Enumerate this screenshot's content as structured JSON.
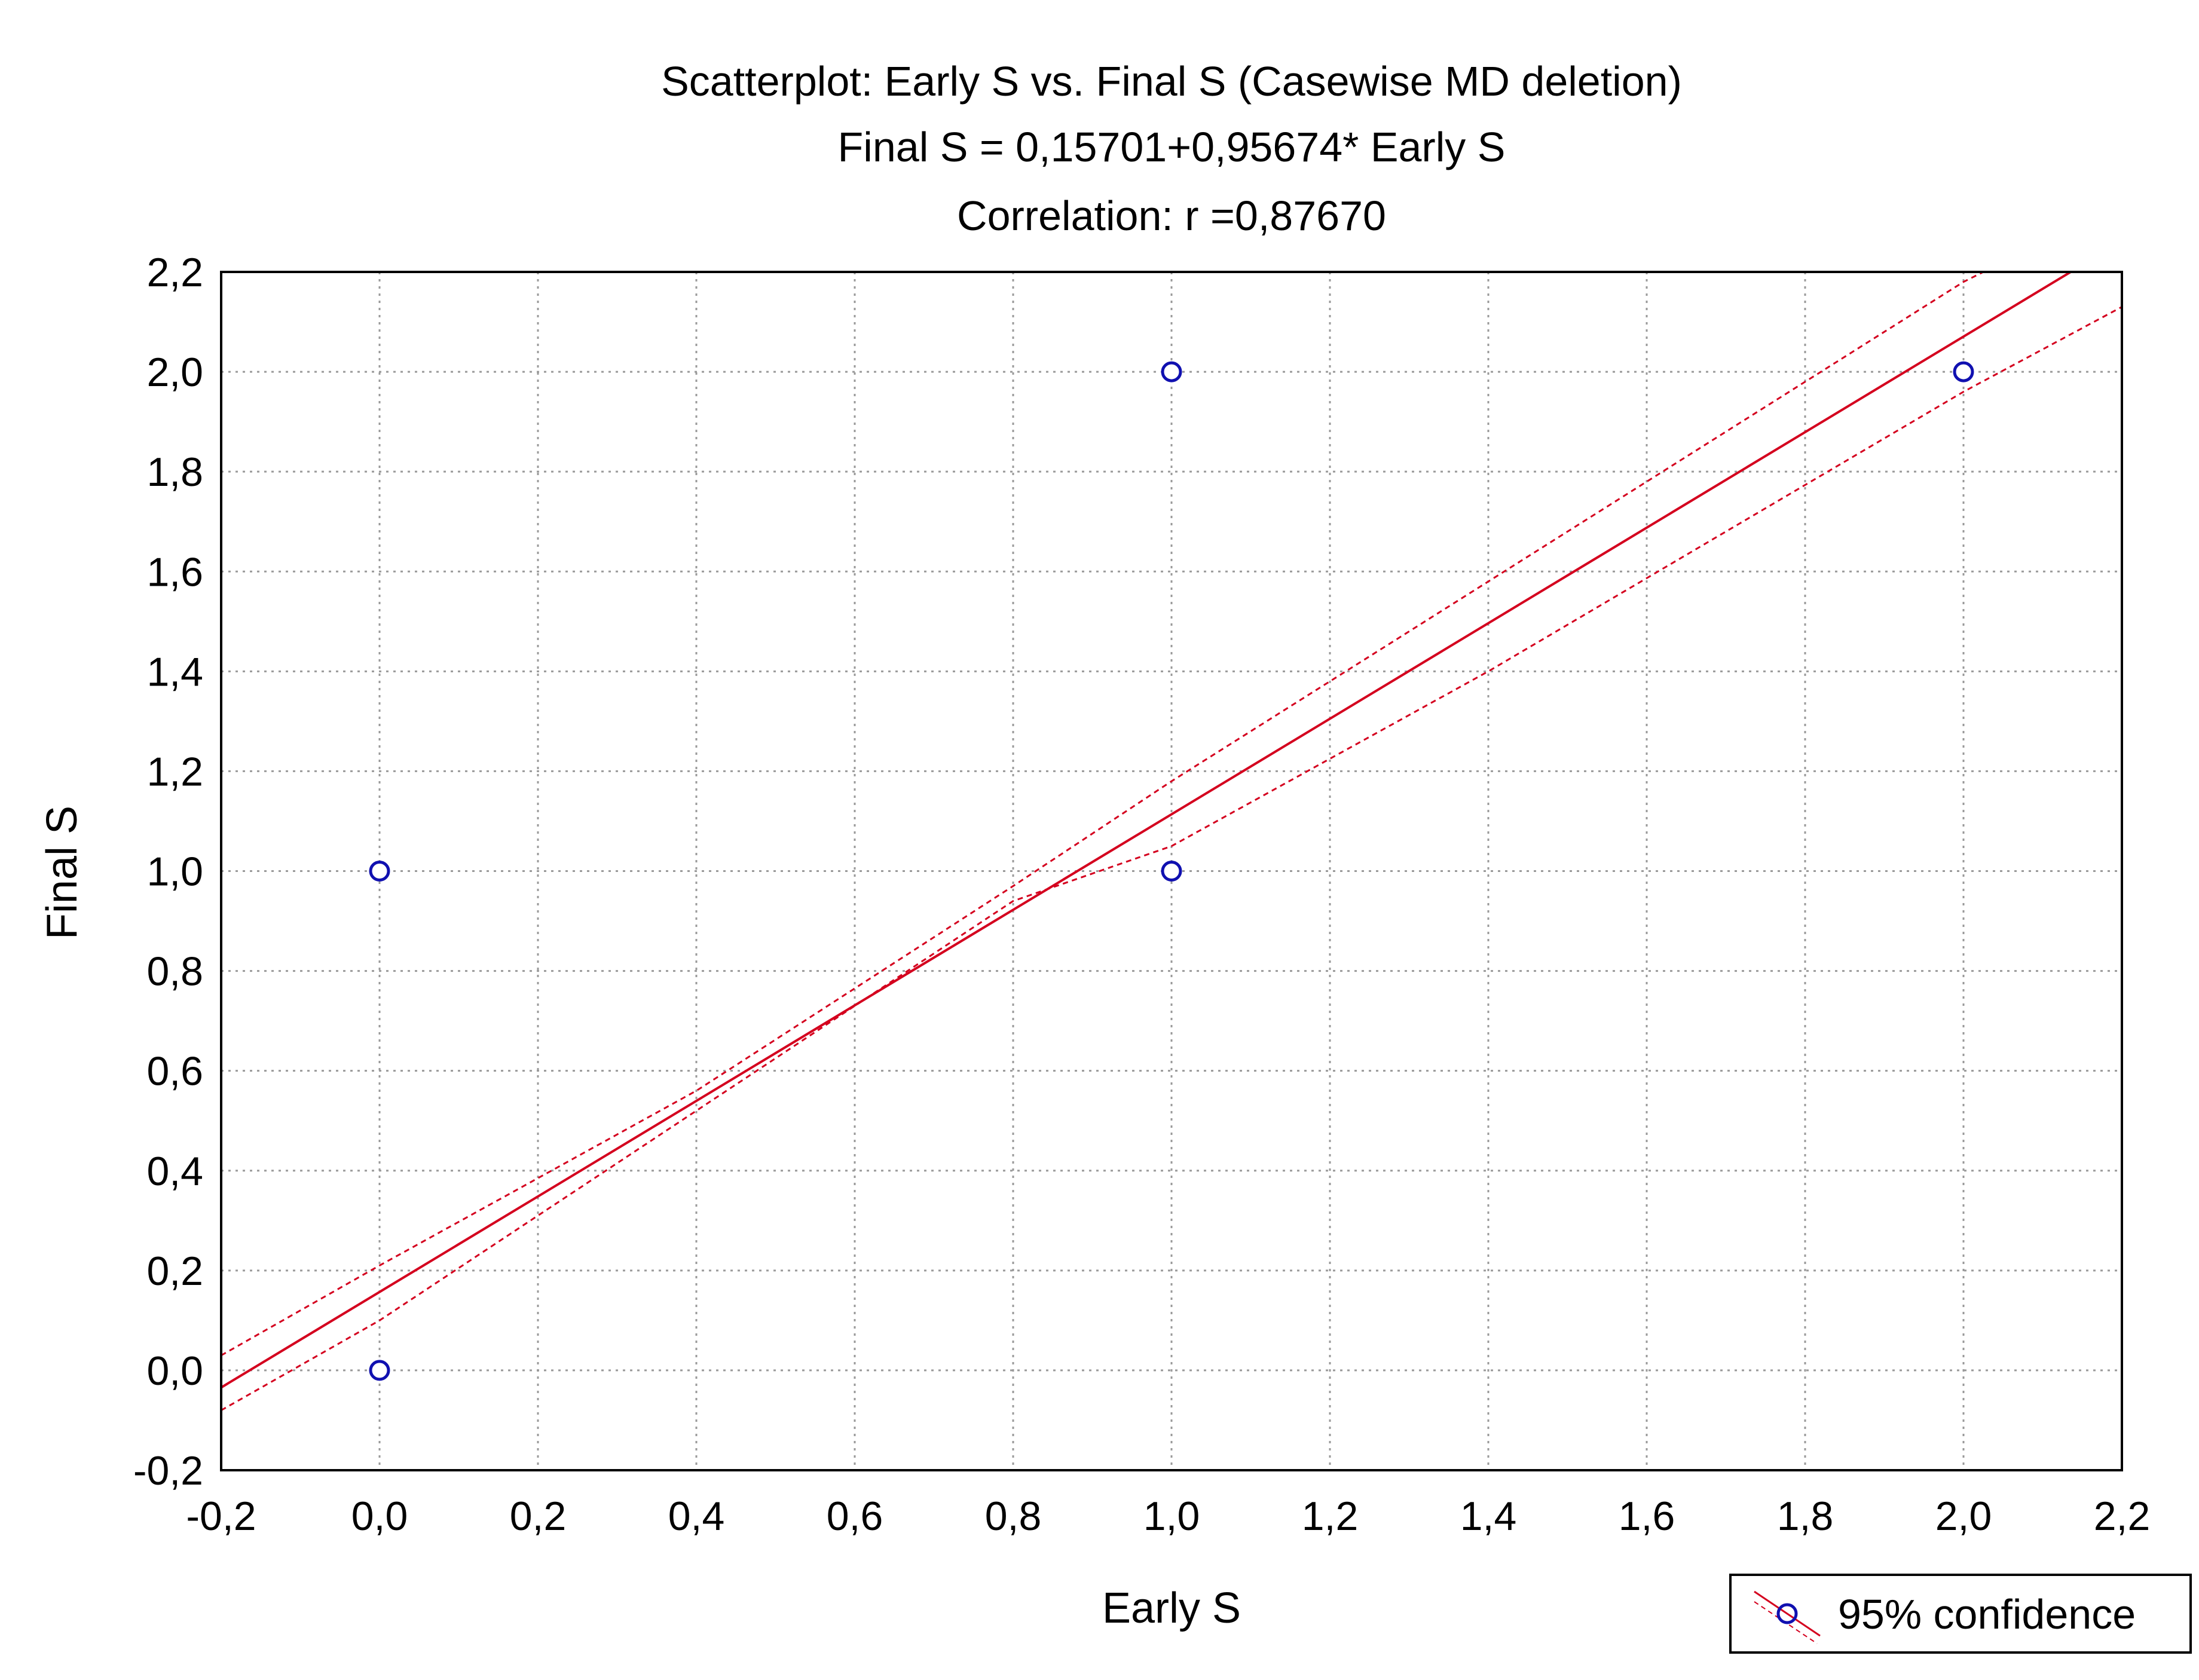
{
  "chart_data": {
    "type": "scatter",
    "title": "Scatterplot: Early S vs. Final S (Casewise MD deletion)",
    "subtitle": "Final S = 0,15701+0,95674* Early S",
    "correlation_text": "Correlation: r =0,87670",
    "xlabel": "Early S",
    "ylabel": "Final S",
    "xlim": [
      -0.2,
      2.2
    ],
    "ylim": [
      -0.2,
      2.2
    ],
    "xticks": [
      -0.2,
      0.0,
      0.2,
      0.4,
      0.6,
      0.8,
      1.0,
      1.2,
      1.4,
      1.6,
      1.8,
      2.0,
      2.2
    ],
    "yticks": [
      -0.2,
      0.0,
      0.2,
      0.4,
      0.6,
      0.8,
      1.0,
      1.2,
      1.4,
      1.6,
      1.8,
      2.0,
      2.2
    ],
    "xtick_labels": [
      "-0,2",
      "0,0",
      "0,2",
      "0,4",
      "0,6",
      "0,8",
      "1,0",
      "1,2",
      "1,4",
      "1,6",
      "1,8",
      "2,0",
      "2,2"
    ],
    "ytick_labels": [
      "-0,2",
      "0,0",
      "0,2",
      "0,4",
      "0,6",
      "0,8",
      "1,0",
      "1,2",
      "1,4",
      "1,6",
      "1,8",
      "2,0",
      "2,2"
    ],
    "grid": true,
    "legend": "bottom-right",
    "legend_label": "95% confidence",
    "points": [
      {
        "x": 0.0,
        "y": 0.0
      },
      {
        "x": 0.0,
        "y": 1.0
      },
      {
        "x": 1.0,
        "y": 1.0
      },
      {
        "x": 1.0,
        "y": 2.0
      },
      {
        "x": 2.0,
        "y": 2.0
      }
    ],
    "regression": {
      "intercept": 0.15701,
      "slope": 0.95674
    },
    "confidence_band": {
      "upper": [
        {
          "x": -0.2,
          "y": 0.03
        },
        {
          "x": 0.0,
          "y": 0.21
        },
        {
          "x": 0.4,
          "y": 0.56
        },
        {
          "x": 0.8,
          "y": 0.97
        },
        {
          "x": 1.0,
          "y": 1.18
        },
        {
          "x": 1.4,
          "y": 1.58
        },
        {
          "x": 2.0,
          "y": 2.18
        },
        {
          "x": 2.05,
          "y": 2.22
        }
      ],
      "lower": [
        {
          "x": -0.2,
          "y": -0.08
        },
        {
          "x": 0.0,
          "y": 0.1
        },
        {
          "x": 0.4,
          "y": 0.52
        },
        {
          "x": 0.8,
          "y": 0.94
        },
        {
          "x": 1.0,
          "y": 1.05
        },
        {
          "x": 1.4,
          "y": 1.4
        },
        {
          "x": 2.0,
          "y": 1.96
        },
        {
          "x": 2.2,
          "y": 2.13
        }
      ]
    },
    "colors": {
      "points": "#1010b0",
      "regression": "#d4001e",
      "grid": "#9a9a9a",
      "frame": "#000000"
    }
  }
}
